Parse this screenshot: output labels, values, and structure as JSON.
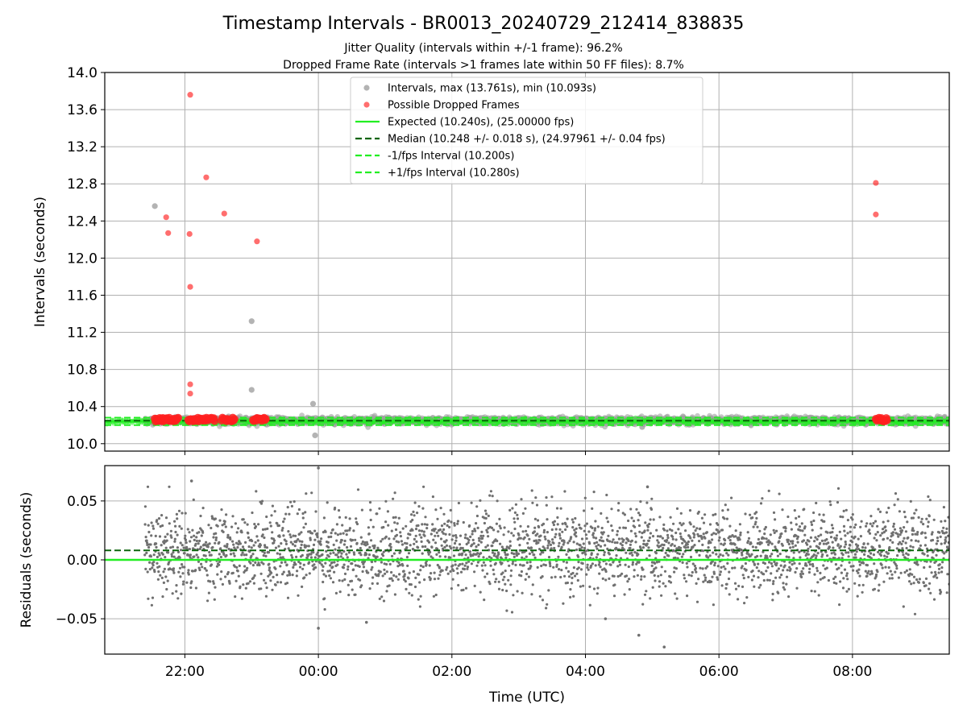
{
  "title": "Timestamp Intervals - BR0013_20240729_212414_838835",
  "subtitle_1": "Jitter Quality (intervals within +/-1 frame): 96.2%",
  "subtitle_2": "Dropped Frame Rate (intervals >1 frames late within 50 FF files): 8.7%",
  "colors": {
    "interval_gray": "#a0a0a0",
    "dropped_red": "#ff2020",
    "expected_green": "#22ee22",
    "median_darkgreen": "#0a640a",
    "bound_green": "#22ee22",
    "residual_gray": "#707070",
    "grid": "#b0b0b0"
  },
  "chart_data": [
    {
      "type": "scatter",
      "panel": "top",
      "xlabel": "",
      "ylabel": "Intervals (seconds)",
      "x_unit": "hours from 00:00 UTC (negative = previous day)",
      "xlim": [
        -3.2,
        9.45
      ],
      "ylim": [
        9.92,
        14.0
      ],
      "yticks": [
        10.0,
        10.4,
        10.8,
        11.2,
        11.6,
        12.0,
        12.4,
        12.8,
        13.2,
        13.6,
        14.0
      ],
      "ytick_labels": [
        "10.0",
        "10.4",
        "10.8",
        "11.2",
        "11.6",
        "12.0",
        "12.4",
        "12.8",
        "13.2",
        "13.6",
        "14.0"
      ],
      "xticks": [
        -2,
        0,
        2,
        4,
        6,
        8
      ],
      "grid": true,
      "legend_position": "top-center",
      "legend": [
        {
          "label": "Intervals, max (13.761s), min (10.093s)",
          "kind": "marker",
          "color_key": "interval_gray"
        },
        {
          "label": "Possible Dropped Frames",
          "kind": "marker",
          "color_key": "dropped_red"
        },
        {
          "label": "Expected (10.240s), (25.00000 fps)",
          "kind": "solid",
          "color_key": "expected_green"
        },
        {
          "label": "Median (10.248 +/- 0.018 s), (24.97961 +/- 0.04 fps)",
          "kind": "dashed",
          "color_key": "median_darkgreen"
        },
        {
          "label": "-1/fps Interval (10.200s)",
          "kind": "dashed",
          "color_key": "bound_green"
        },
        {
          "label": "+1/fps Interval (10.280s)",
          "kind": "dashed",
          "color_key": "bound_green"
        }
      ],
      "series": [
        {
          "name": "Intervals, max (13.761s), min (10.093s)",
          "x_start": -2.6,
          "x_end": 9.45,
          "band_center": 10.248,
          "band_halfwidth": 0.035,
          "outliers": [
            {
              "x": -2.45,
              "y": 12.56
            },
            {
              "x": -1.0,
              "y": 11.32
            },
            {
              "x": -1.0,
              "y": 10.58
            },
            {
              "x": -0.08,
              "y": 10.43
            },
            {
              "x": -0.05,
              "y": 10.09
            },
            {
              "x": 4.85,
              "y": 10.18
            }
          ]
        },
        {
          "name": "Possible Dropped Frames",
          "points": [
            {
              "x": -1.92,
              "y": 13.76
            },
            {
              "x": -1.68,
              "y": 12.87
            },
            {
              "x": -2.28,
              "y": 12.44
            },
            {
              "x": -2.25,
              "y": 12.27
            },
            {
              "x": -1.41,
              "y": 12.48
            },
            {
              "x": -0.92,
              "y": 12.18
            },
            {
              "x": -1.93,
              "y": 12.26
            },
            {
              "x": -1.92,
              "y": 11.69
            },
            {
              "x": -1.92,
              "y": 10.64
            },
            {
              "x": -1.92,
              "y": 10.54
            },
            {
              "x": 8.35,
              "y": 12.81
            },
            {
              "x": 8.35,
              "y": 12.47
            }
          ],
          "clusters": [
            {
              "x_start": -2.45,
              "x_end": -2.1,
              "y": 10.26
            },
            {
              "x_start": -1.95,
              "x_end": -1.55,
              "y": 10.26
            },
            {
              "x_start": -1.45,
              "x_end": -1.25,
              "y": 10.26
            },
            {
              "x_start": -0.98,
              "x_end": -0.78,
              "y": 10.26
            },
            {
              "x_start": 8.35,
              "x_end": 8.52,
              "y": 10.26
            }
          ]
        },
        {
          "name": "Expected (10.240s), (25.00000 fps)",
          "y": 10.24
        },
        {
          "name": "Median (10.248 +/- 0.018 s), (24.97961 +/- 0.04 fps)",
          "y": 10.248
        },
        {
          "name": "-1/fps Interval (10.200s)",
          "y": 10.2
        },
        {
          "name": "+1/fps Interval (10.280s)",
          "y": 10.28
        }
      ]
    },
    {
      "type": "scatter",
      "panel": "bottom",
      "xlabel": "Time (UTC)",
      "ylabel": "Residuals (seconds)",
      "x_unit": "hours from 00:00 UTC (negative = previous day)",
      "xlim": [
        -3.2,
        9.45
      ],
      "ylim": [
        -0.08,
        0.08
      ],
      "yticks": [
        -0.05,
        0.0,
        0.05
      ],
      "ytick_labels": [
        "−0.05",
        "0.00",
        "0.05"
      ],
      "xticks": [
        -2,
        0,
        2,
        4,
        6,
        8
      ],
      "xtick_labels": [
        "22:00",
        "00:00",
        "02:00",
        "04:00",
        "06:00",
        "08:00"
      ],
      "grid": true,
      "series": [
        {
          "name": "residuals",
          "x_start": -2.6,
          "x_end": 9.45,
          "mean": 0.008,
          "spread": 0.018,
          "outliers": [
            {
              "x": -1.9,
              "y": 0.067
            },
            {
              "x": 0.0,
              "y": 0.078
            },
            {
              "x": 0.0,
              "y": -0.058
            },
            {
              "x": 0.72,
              "y": -0.053
            },
            {
              "x": 4.3,
              "y": -0.05
            },
            {
              "x": 4.8,
              "y": -0.064
            },
            {
              "x": 4.93,
              "y": 0.062
            },
            {
              "x": 5.18,
              "y": -0.074
            }
          ]
        },
        {
          "name": "expected",
          "y": 0.0
        },
        {
          "name": "median",
          "y": 0.008
        }
      ]
    }
  ]
}
